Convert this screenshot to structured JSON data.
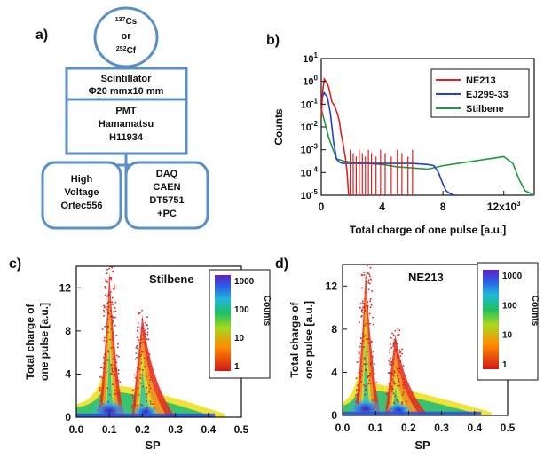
{
  "panel_a": {
    "label": "a)",
    "source": {
      "mass1": "137",
      "el1": "Cs",
      "or": "or",
      "mass2": "252",
      "el2": "Cf"
    },
    "scintillator": {
      "line1": "Scintillator",
      "line2": "Φ20 mmx10 mm"
    },
    "pmt": {
      "line1": "PMT",
      "line2": "Hamamatsu",
      "line3": "H11934"
    },
    "hv": {
      "line1": "High",
      "line2": "Voltage",
      "line3": "Ortec556"
    },
    "daq": {
      "line1": "DAQ",
      "line2": "CAEN",
      "line3": "DT5751",
      "line4": "+PC"
    },
    "box_color": "#5b8fc7"
  },
  "chart_data": [
    {
      "panel_label": "b)",
      "type": "line",
      "ylabel": "Counts",
      "xlabel": "Total charge of one pulse [a.u.]",
      "xlim": [
        0,
        14000
      ],
      "ylim_log10": [
        -5,
        1
      ],
      "yscale": "log",
      "x_ticks": [
        0,
        4000,
        8000,
        12000
      ],
      "x_tick_labels": [
        "0",
        "4",
        "8",
        "12x10"
      ],
      "x_tick_exponent": "3",
      "y_ticks_log10": [
        -5,
        -4,
        -3,
        -2,
        -1,
        0,
        1
      ],
      "y_tick_base": "10",
      "y_tick_exponents": [
        "-5",
        "-4",
        "-3",
        "-2",
        "-1",
        "0",
        "1"
      ],
      "legend_position": "top-right",
      "series": [
        {
          "name": "NE213",
          "color": "#e02020",
          "x": [
            0,
            100,
            200,
            300,
            400,
            500,
            600,
            700,
            800,
            900,
            1000,
            1100,
            1200,
            1300,
            1400,
            1500,
            1600,
            1700,
            1800
          ],
          "y_log10": [
            -1.6,
            -0.4,
            0.1,
            0.0,
            -0.1,
            -0.3,
            -0.6,
            -0.9,
            -1.0,
            -1.1,
            -1.3,
            -1.5,
            -1.8,
            -2.3,
            -2.6,
            -3.0,
            -3.4,
            -4.0,
            -5.0
          ],
          "sparse_spikes_x": [
            1900,
            2100,
            2300,
            2500,
            2700,
            2900,
            3100,
            3300,
            3600,
            3900,
            4200,
            4600,
            5000,
            5300,
            5700,
            6000
          ]
        },
        {
          "name": "EJ299-33",
          "color": "#1f3fd0",
          "x": [
            0,
            200,
            400,
            600,
            800,
            1000,
            1200,
            1400,
            2000,
            3000,
            4000,
            5000,
            6000,
            7000,
            7400,
            7700,
            8000,
            8200,
            8400,
            8700,
            9000
          ],
          "y_log10": [
            -0.8,
            -0.5,
            -0.7,
            -1.4,
            -2.6,
            -3.4,
            -3.55,
            -3.6,
            -3.6,
            -3.6,
            -3.6,
            -3.6,
            -3.6,
            -3.65,
            -3.7,
            -4.0,
            -4.5,
            -4.8,
            -4.9,
            -5.0,
            -5.0
          ]
        },
        {
          "name": "Stilbene",
          "color": "#1f9a3a",
          "x": [
            0,
            500,
            1000,
            1500,
            2000,
            3000,
            4000,
            5000,
            6000,
            7000,
            8000,
            9000,
            10000,
            11000,
            12000,
            12600,
            13000,
            13400,
            14000
          ],
          "y_log10": [
            -1.2,
            -2.5,
            -3.4,
            -3.5,
            -3.55,
            -3.6,
            -3.65,
            -3.75,
            -3.8,
            -3.85,
            -3.7,
            -3.6,
            -3.5,
            -3.4,
            -3.3,
            -3.6,
            -4.3,
            -4.8,
            -5.0
          ]
        }
      ]
    },
    {
      "panel_label": "c)",
      "type": "heatmap",
      "annotation": "Stilbene",
      "xlabel": "SP",
      "ylabel": "Total charge of one pulse [a.u.]",
      "xlim": [
        0,
        0.5
      ],
      "ylim": [
        0,
        14
      ],
      "x_ticks": [
        0.0,
        0.1,
        0.2,
        0.3,
        0.4,
        0.5
      ],
      "x_tick_labels": [
        "0.0",
        "0.1",
        "0.2",
        "0.3",
        "0.4",
        "0.5"
      ],
      "y_ticks": [
        0,
        4,
        8,
        12
      ],
      "y_tick_labels": [
        "0",
        "4",
        "8",
        "12"
      ],
      "colorbar": {
        "label": "Counts",
        "ticks": [
          "1000",
          "100",
          "10",
          "1"
        ],
        "scale": "log"
      },
      "bands": [
        {
          "center_sp": 0.1,
          "peak_y": 13.5,
          "base_sp": 0.1
        },
        {
          "center_sp": 0.2,
          "peak_y": 9.5,
          "base_sp": 0.2
        }
      ]
    },
    {
      "panel_label": "d)",
      "type": "heatmap",
      "annotation": "NE213",
      "xlabel": "SP",
      "ylabel": "Total charge of one pulse [a.u.]",
      "xlim": [
        0,
        0.5
      ],
      "ylim": [
        0,
        14
      ],
      "x_ticks": [
        0.0,
        0.1,
        0.2,
        0.3,
        0.4,
        0.5
      ],
      "x_tick_labels": [
        "0.0",
        "0.1",
        "0.2",
        "0.3",
        "0.4",
        "0.5"
      ],
      "y_ticks": [
        0,
        4,
        8,
        12
      ],
      "y_tick_labels": [
        "0",
        "4",
        "8",
        "12"
      ],
      "colorbar": {
        "label": "Counts",
        "ticks": [
          "1000",
          "100",
          "10",
          "1"
        ],
        "scale": "log"
      },
      "bands": [
        {
          "center_sp": 0.07,
          "peak_y": 13.5,
          "base_sp": 0.07
        },
        {
          "center_sp": 0.16,
          "peak_y": 7.5,
          "base_sp": 0.16
        }
      ]
    }
  ]
}
